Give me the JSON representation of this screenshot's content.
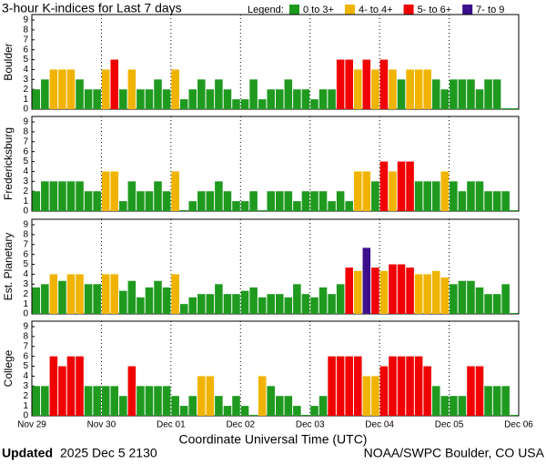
{
  "header": {
    "title": "3-hour K-indices for Last 7 days",
    "legend_label": "Legend:",
    "legend": [
      {
        "label": "0 to 3+",
        "color": "#1f9a1f"
      },
      {
        "label": "4- to 4+",
        "color": "#f0b400"
      },
      {
        "label": "5- to 6+",
        "color": "#f00000"
      },
      {
        "label": "7- to 9",
        "color": "#3c0f8c"
      }
    ]
  },
  "xaxis": {
    "label": "Coordinate Universal Time (UTC)",
    "xlim": [
      0,
      56
    ],
    "xticks": [
      {
        "value": 0,
        "label": "Nov 29"
      },
      {
        "value": 8,
        "label": "Nov 30"
      },
      {
        "value": 16,
        "label": "Dec 01"
      },
      {
        "value": 24,
        "label": "Dec 02"
      },
      {
        "value": 32,
        "label": "Dec 03"
      },
      {
        "value": 40,
        "label": "Dec 04"
      },
      {
        "value": 48,
        "label": "Dec 05"
      },
      {
        "value": 56,
        "label": "Dec 06"
      }
    ]
  },
  "footer": {
    "updated_label": "Updated",
    "updated": "2025 Dec  5 2130",
    "credit": "NOAA/SWPC Boulder, CO USA"
  },
  "chart_data": [
    {
      "type": "bar",
      "ylabel": "Boulder",
      "ylim": [
        0,
        9
      ],
      "yticks": [
        0,
        1,
        2,
        3,
        4,
        5,
        6,
        7,
        8,
        9
      ],
      "values": [
        2,
        3,
        4,
        4,
        4,
        3,
        2,
        2,
        4,
        5,
        2,
        4,
        2,
        2,
        3,
        2,
        4,
        1,
        2,
        3,
        2,
        3,
        2,
        1,
        1,
        3,
        1,
        2,
        2,
        3,
        2,
        2,
        1,
        2,
        2,
        5,
        5,
        4,
        5,
        4,
        5,
        4,
        3,
        4,
        4,
        4,
        3,
        2,
        3,
        3,
        3,
        2,
        3,
        3,
        0,
        0
      ]
    },
    {
      "type": "bar",
      "ylabel": "Fredericksburg",
      "ylim": [
        0,
        9
      ],
      "yticks": [
        0,
        1,
        2,
        3,
        4,
        5,
        6,
        7,
        8,
        9
      ],
      "values": [
        2,
        3,
        3,
        3,
        3,
        3,
        2,
        2,
        4,
        4,
        1,
        3,
        2,
        2,
        3,
        2,
        4,
        0,
        1,
        2,
        2,
        3,
        2,
        1,
        1,
        2,
        0,
        2,
        2,
        2,
        1,
        2,
        2,
        2,
        1,
        2,
        1,
        4,
        4,
        3,
        5,
        4,
        5,
        5,
        3,
        3,
        3,
        4,
        3,
        2,
        3,
        3,
        2,
        2,
        2,
        0
      ]
    },
    {
      "type": "bar",
      "ylabel": "Est. Planetary",
      "ylim": [
        0,
        9
      ],
      "yticks": [
        0,
        1,
        2,
        3,
        4,
        5,
        6,
        7,
        8,
        9
      ],
      "values": [
        2.67,
        3,
        4,
        3.33,
        4,
        4,
        3,
        3,
        4,
        4,
        2.33,
        3.33,
        1.67,
        2.67,
        3.33,
        2.67,
        4,
        1,
        1.67,
        2,
        2,
        3,
        2,
        2,
        2.33,
        2.67,
        1.67,
        2,
        2,
        1.67,
        3,
        2,
        1.67,
        2.67,
        2,
        3,
        4.67,
        4.33,
        6.67,
        4.67,
        4.33,
        5,
        5,
        4.67,
        4,
        4,
        4.33,
        3.67,
        3,
        3.33,
        3.33,
        2.67,
        2,
        2,
        3,
        0
      ]
    },
    {
      "type": "bar",
      "ylabel": "College",
      "ylim": [
        0,
        9
      ],
      "yticks": [
        0,
        1,
        2,
        3,
        4,
        5,
        6,
        7,
        8,
        9
      ],
      "values": [
        3,
        3,
        6,
        5,
        6,
        6,
        3,
        3,
        3,
        3,
        2,
        5,
        3,
        3,
        3,
        3,
        2,
        1,
        2,
        4,
        4,
        2,
        1,
        2,
        1,
        0,
        4,
        3,
        2,
        2,
        1,
        0,
        1,
        2,
        6,
        6,
        6,
        6,
        4,
        4,
        5,
        6,
        6,
        6,
        6,
        5,
        3,
        2,
        2,
        2,
        5,
        5,
        3,
        3,
        3,
        0
      ]
    }
  ]
}
